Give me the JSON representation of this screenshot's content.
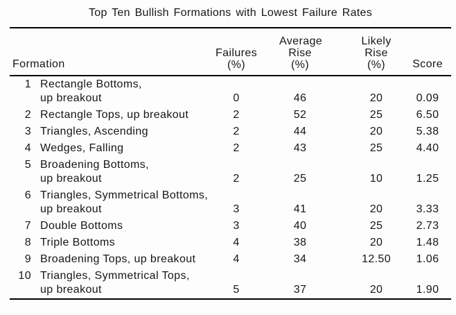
{
  "title": "Top Ten Bullish Formations with Lowest Failure Rates",
  "colors": {
    "text": "#161616",
    "rule": "#000000",
    "background": "#fdfdfd"
  },
  "table": {
    "headers": {
      "formation": "Formation",
      "failures": [
        "Failures",
        "(%)"
      ],
      "average_rise": [
        "Average",
        "Rise",
        "(%)"
      ],
      "likely_rise": [
        "Likely",
        "Rise",
        "(%)"
      ],
      "score": "Score"
    },
    "rows": [
      {
        "rank": "1",
        "name_line1": "Rectangle Bottoms,",
        "name_line2": "up breakout",
        "failures_pct": "0",
        "average_rise_pct": "46",
        "likely_rise_pct": "20",
        "score": "0.09"
      },
      {
        "rank": "2",
        "name_line1": "Rectangle Tops, up breakout",
        "name_line2": "",
        "failures_pct": "2",
        "average_rise_pct": "52",
        "likely_rise_pct": "25",
        "score": "6.50"
      },
      {
        "rank": "3",
        "name_line1": "Triangles, Ascending",
        "name_line2": "",
        "failures_pct": "2",
        "average_rise_pct": "44",
        "likely_rise_pct": "20",
        "score": "5.38"
      },
      {
        "rank": "4",
        "name_line1": "Wedges, Falling",
        "name_line2": "",
        "failures_pct": "2",
        "average_rise_pct": "43",
        "likely_rise_pct": "25",
        "score": "4.40"
      },
      {
        "rank": "5",
        "name_line1": "Broadening Bottoms,",
        "name_line2": "up breakout",
        "failures_pct": "2",
        "average_rise_pct": "25",
        "likely_rise_pct": "10",
        "score": "1.25"
      },
      {
        "rank": "6",
        "name_line1": "Triangles, Symmetrical Bottoms,",
        "name_line2": "up breakout",
        "failures_pct": "3",
        "average_rise_pct": "41",
        "likely_rise_pct": "20",
        "score": "3.33"
      },
      {
        "rank": "7",
        "name_line1": "Double Bottoms",
        "name_line2": "",
        "failures_pct": "3",
        "average_rise_pct": "40",
        "likely_rise_pct": "25",
        "score": "2.73"
      },
      {
        "rank": "8",
        "name_line1": "Triple Bottoms",
        "name_line2": "",
        "failures_pct": "4",
        "average_rise_pct": "38",
        "likely_rise_pct": "20",
        "score": "1.48"
      },
      {
        "rank": "9",
        "name_line1": "Broadening Tops, up breakout",
        "name_line2": "",
        "failures_pct": "4",
        "average_rise_pct": "34",
        "likely_rise_pct": "12.50",
        "score": "1.06"
      },
      {
        "rank": "10",
        "name_line1": "Triangles, Symmetrical Tops,",
        "name_line2": "up breakout",
        "failures_pct": "5",
        "average_rise_pct": "37",
        "likely_rise_pct": "20",
        "score": "1.90"
      }
    ]
  }
}
